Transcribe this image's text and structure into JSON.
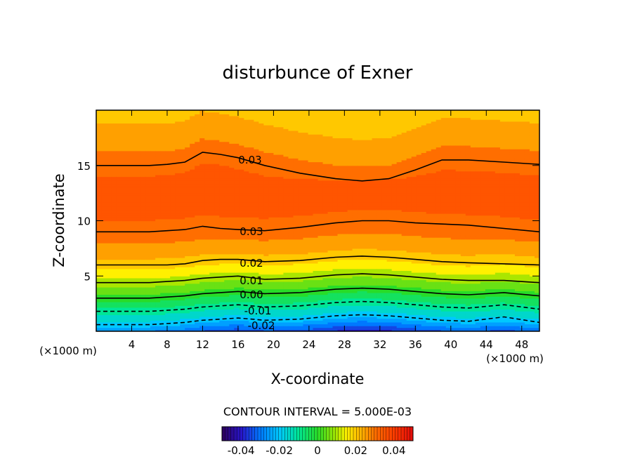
{
  "chart_data": {
    "type": "contour",
    "title": "disturbunce of Exner",
    "xlabel": "X-coordinate",
    "ylabel": "Z-coordinate",
    "x_unit": "(×1000 m)",
    "y_unit": "(×1000 m)",
    "xlim": [
      0,
      50
    ],
    "ylim": [
      0,
      20
    ],
    "xticks": [
      4,
      8,
      12,
      16,
      20,
      24,
      28,
      32,
      36,
      40,
      44,
      48
    ],
    "yticks": [
      5,
      10,
      15
    ],
    "contour_interval_text": "CONTOUR INTERVAL = 5.000E-03",
    "contour_interval": 0.005,
    "value_range": [
      -0.05,
      0.05
    ],
    "contour_labels": [
      "0.03",
      "0.03",
      "0.02",
      "0.01",
      "0.00",
      "-0.01",
      "-0.02"
    ],
    "contour_levels": [
      {
        "value": 0.03,
        "z": [
          15.0,
          15.0,
          15.0,
          15.1,
          15.3,
          16.2,
          16.0,
          15.7,
          15.0,
          14.3,
          13.8,
          13.6,
          13.8,
          14.6,
          15.5,
          15.5,
          15.3,
          15.1
        ]
      },
      {
        "value": 0.03,
        "z": [
          9.0,
          9.0,
          9.0,
          9.1,
          9.2,
          9.5,
          9.3,
          9.2,
          9.1,
          9.4,
          9.8,
          10.0,
          10.0,
          9.8,
          9.7,
          9.6,
          9.3,
          9.0
        ]
      },
      {
        "value": 0.02,
        "z": [
          6.0,
          6.0,
          6.0,
          6.0,
          6.1,
          6.4,
          6.5,
          6.5,
          6.3,
          6.4,
          6.7,
          6.8,
          6.7,
          6.5,
          6.3,
          6.2,
          6.1,
          6.0
        ]
      },
      {
        "value": 0.01,
        "z": [
          4.4,
          4.4,
          4.4,
          4.5,
          4.6,
          4.8,
          4.9,
          5.0,
          4.7,
          4.8,
          5.1,
          5.2,
          5.1,
          4.9,
          4.7,
          4.6,
          4.6,
          4.4
        ]
      },
      {
        "value": 0.0,
        "z": [
          3.0,
          3.0,
          3.0,
          3.1,
          3.2,
          3.4,
          3.5,
          3.6,
          3.4,
          3.5,
          3.8,
          3.9,
          3.8,
          3.6,
          3.4,
          3.3,
          3.5,
          3.2
        ]
      },
      {
        "value": -0.01,
        "z": [
          1.8,
          1.8,
          1.8,
          1.9,
          2.0,
          2.2,
          2.3,
          2.4,
          2.2,
          2.3,
          2.6,
          2.7,
          2.6,
          2.4,
          2.2,
          2.1,
          2.4,
          2.0
        ]
      },
      {
        "value": -0.02,
        "z": [
          0.6,
          0.6,
          0.6,
          0.7,
          0.8,
          1.0,
          1.1,
          1.2,
          1.0,
          1.1,
          1.4,
          1.5,
          1.4,
          1.2,
          1.0,
          0.9,
          1.3,
          0.8
        ]
      }
    ],
    "contour_x": [
      0,
      3,
      6,
      8,
      10,
      12,
      14,
      16,
      19,
      23,
      27,
      30,
      33,
      36,
      39,
      42,
      46,
      50
    ],
    "colorbar": {
      "ticks": [
        "-0.04",
        "-0.02",
        "0",
        "0.02",
        "0.04"
      ],
      "tick_values": [
        -0.04,
        -0.02,
        0,
        0.02,
        0.04
      ]
    }
  },
  "colors": {
    "frame": "#000000",
    "background": "#ffffff"
  }
}
